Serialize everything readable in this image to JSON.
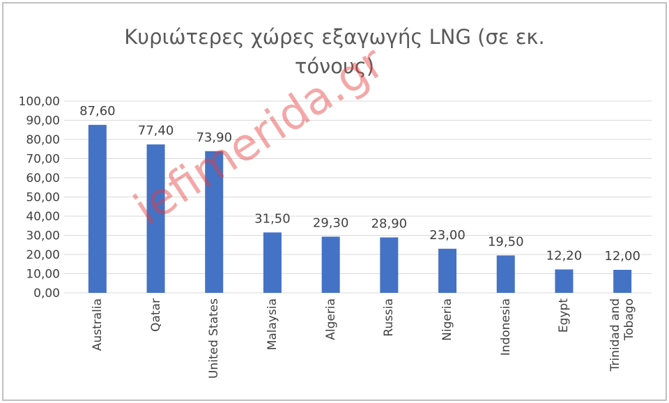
{
  "chart_data": {
    "type": "bar",
    "title": "Κυριώτερες χώρες εξαγωγής  LNG (σε εκ. τόνους)",
    "watermark": "iefimerida.gr",
    "categories": [
      "Australia",
      "Qatar",
      "United States",
      "Malaysia",
      "Algeria",
      "Russia",
      "Nigeria",
      "Indonesia",
      "Egypt",
      "Trinidad and Tobago"
    ],
    "values": [
      87.6,
      77.4,
      73.9,
      31.5,
      29.3,
      28.9,
      23.0,
      19.5,
      12.2,
      12.0
    ],
    "value_labels": [
      "87,60",
      "77,40",
      "73,90",
      "31,50",
      "29,30",
      "28,90",
      "23,00",
      "19,50",
      "12,20",
      "12,00"
    ],
    "color": "#4472c4",
    "ylim": [
      0,
      100
    ],
    "yticks": [
      {
        "value": 0,
        "label": "0,00"
      },
      {
        "value": 10,
        "label": "10,00"
      },
      {
        "value": 20,
        "label": "20,00"
      },
      {
        "value": 30,
        "label": "30,00"
      },
      {
        "value": 40,
        "label": "40,00"
      },
      {
        "value": 50,
        "label": "50,00"
      },
      {
        "value": 60,
        "label": "60,00"
      },
      {
        "value": 70,
        "label": "70,00"
      },
      {
        "value": 80,
        "label": "80,00"
      },
      {
        "value": 90,
        "label": "90,00"
      },
      {
        "value": 100,
        "label": "100,00"
      }
    ],
    "grid": true
  }
}
